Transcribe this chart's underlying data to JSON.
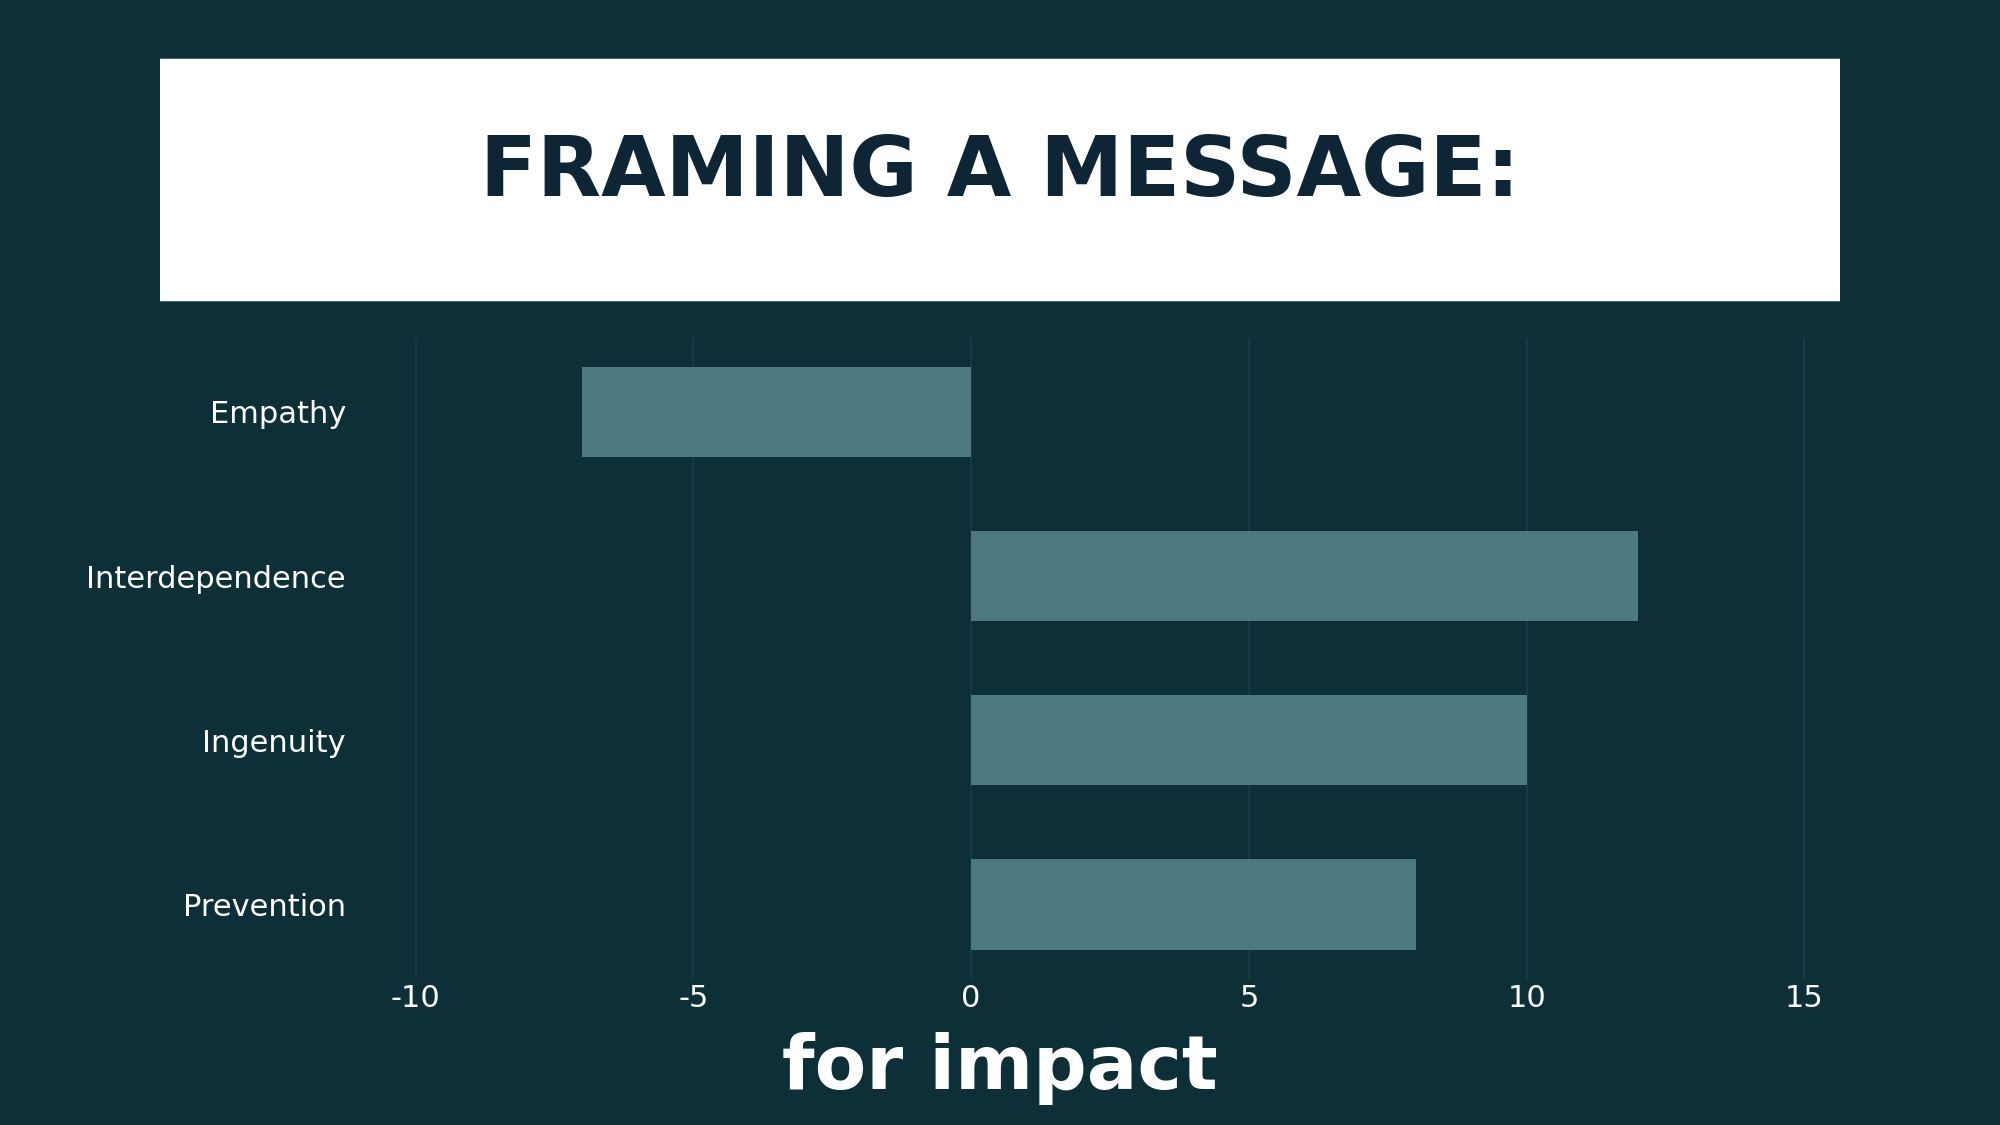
{
  "categories": [
    "Empathy",
    "Interdependence",
    "Ingenuity",
    "Prevention"
  ],
  "values": [
    -7,
    12,
    10,
    8
  ],
  "bar_color": "#4d7a80",
  "background_color": "#0d2f38",
  "text_color": "#ffffff",
  "title_line1": "FRAMING A MESSAGE:",
  "title_line2": "for impact",
  "title_bg_color": "#ffffff",
  "title_text_color": "#0d2535",
  "xlim": [
    -11,
    16
  ],
  "xticks": [
    -10,
    -5,
    0,
    5,
    10,
    15
  ],
  "bar_height": 0.55,
  "grid_color": "#1a3d4a",
  "tick_label_size": 22,
  "category_label_size": 22
}
